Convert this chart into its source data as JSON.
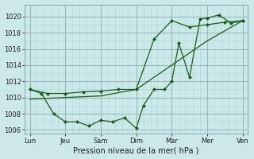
{
  "xlabel": "Pression niveau de la mer( hPa )",
  "background_color": "#cce8e8",
  "grid_color_major": "#99bbbb",
  "grid_color_minor": "#aadddd",
  "line_color": "#1a5c1a",
  "ylim": [
    1005.5,
    1021.5
  ],
  "yticks": [
    1006,
    1008,
    1010,
    1012,
    1014,
    1016,
    1018,
    1020
  ],
  "x_labels": [
    "Lun",
    "Jeu",
    "Sam",
    "Dim",
    "Mar",
    "Mer",
    "Ven"
  ],
  "x_positions": [
    0,
    1,
    2,
    3,
    4,
    5,
    6
  ],
  "xlim": [
    -0.15,
    6.15
  ],
  "series1": {
    "x": [
      0,
      0.33,
      0.67,
      1.0,
      1.33,
      1.67,
      2.0,
      2.33,
      2.67,
      3.0,
      3.2,
      3.5,
      3.8,
      4.0,
      4.2,
      4.5,
      4.8,
      5.0,
      5.33,
      5.67,
      6.0
    ],
    "y": [
      1011,
      1010.5,
      1008,
      1007,
      1007,
      1006.5,
      1007.2,
      1007,
      1007.5,
      1006.2,
      1009,
      1011,
      1011,
      1012,
      1016.7,
      1012.5,
      1019.7,
      1019.8,
      1020.2,
      1019.2,
      1019.5
    ]
  },
  "series2": {
    "x": [
      0,
      0.5,
      1.0,
      1.5,
      2.0,
      2.5,
      3.0,
      3.5,
      4.0,
      4.5,
      5.0,
      5.5,
      6.0
    ],
    "y": [
      1011,
      1010.5,
      1010.5,
      1010.7,
      1010.8,
      1011,
      1011,
      1017.2,
      1019.5,
      1018.7,
      1019.0,
      1019.3,
      1019.5
    ]
  },
  "series3": {
    "x": [
      0,
      1.0,
      2.0,
      3.0,
      4.0,
      5.0,
      6.0
    ],
    "y": [
      1009.8,
      1010,
      1010.2,
      1011,
      1014,
      1017,
      1019.5
    ]
  }
}
